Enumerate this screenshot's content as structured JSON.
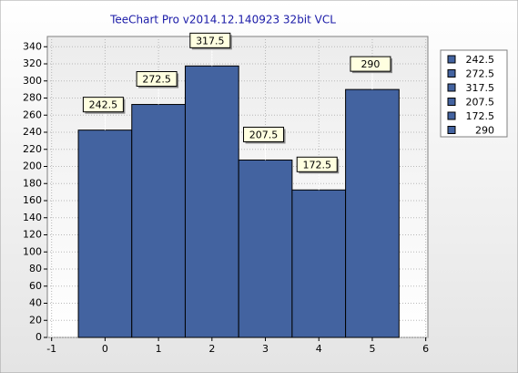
{
  "chart_data": {
    "type": "bar",
    "title": "TeeChart Pro v2014.12.140923 32bit VCL",
    "x": [
      0,
      1,
      2,
      3,
      4,
      5
    ],
    "values": [
      242.5,
      272.5,
      317.5,
      207.5,
      172.5,
      290
    ],
    "color": "#4363a0",
    "xlim": [
      -1.08,
      6.04
    ],
    "xticks": [
      -1,
      0,
      1,
      2,
      3,
      4,
      5,
      6
    ],
    "ylim": [
      0,
      352
    ],
    "yticks": [
      0,
      20,
      40,
      60,
      80,
      100,
      120,
      140,
      160,
      180,
      200,
      220,
      240,
      260,
      280,
      300,
      320,
      340
    ],
    "grid": true,
    "legend": "right"
  }
}
